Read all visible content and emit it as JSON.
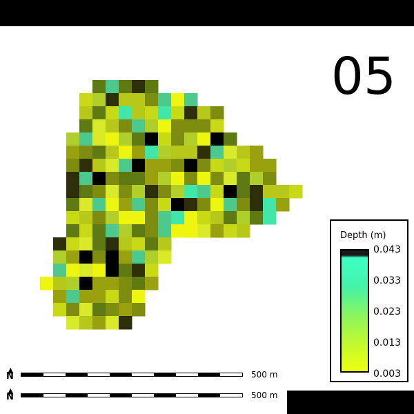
{
  "frame_label": "05",
  "legend": {
    "title": "Depth (m)",
    "ticks": [
      "0.043",
      "0.033",
      "0.023",
      "0.013",
      "0.003"
    ]
  },
  "scalebars": [
    {
      "label": "500 m",
      "north_symbol": "N"
    },
    {
      "label": "500 m",
      "north_symbol": "N"
    }
  ],
  "colors": {
    "background": "#ffffff",
    "bars": "#000000"
  },
  "map": {
    "rows": [
      "    1112  ",
      "   1221242",
      "  12241213",
      "  1224313 ",
      " 12114321 ",
      "  2213  ",
      "          "
    ]
  }
}
